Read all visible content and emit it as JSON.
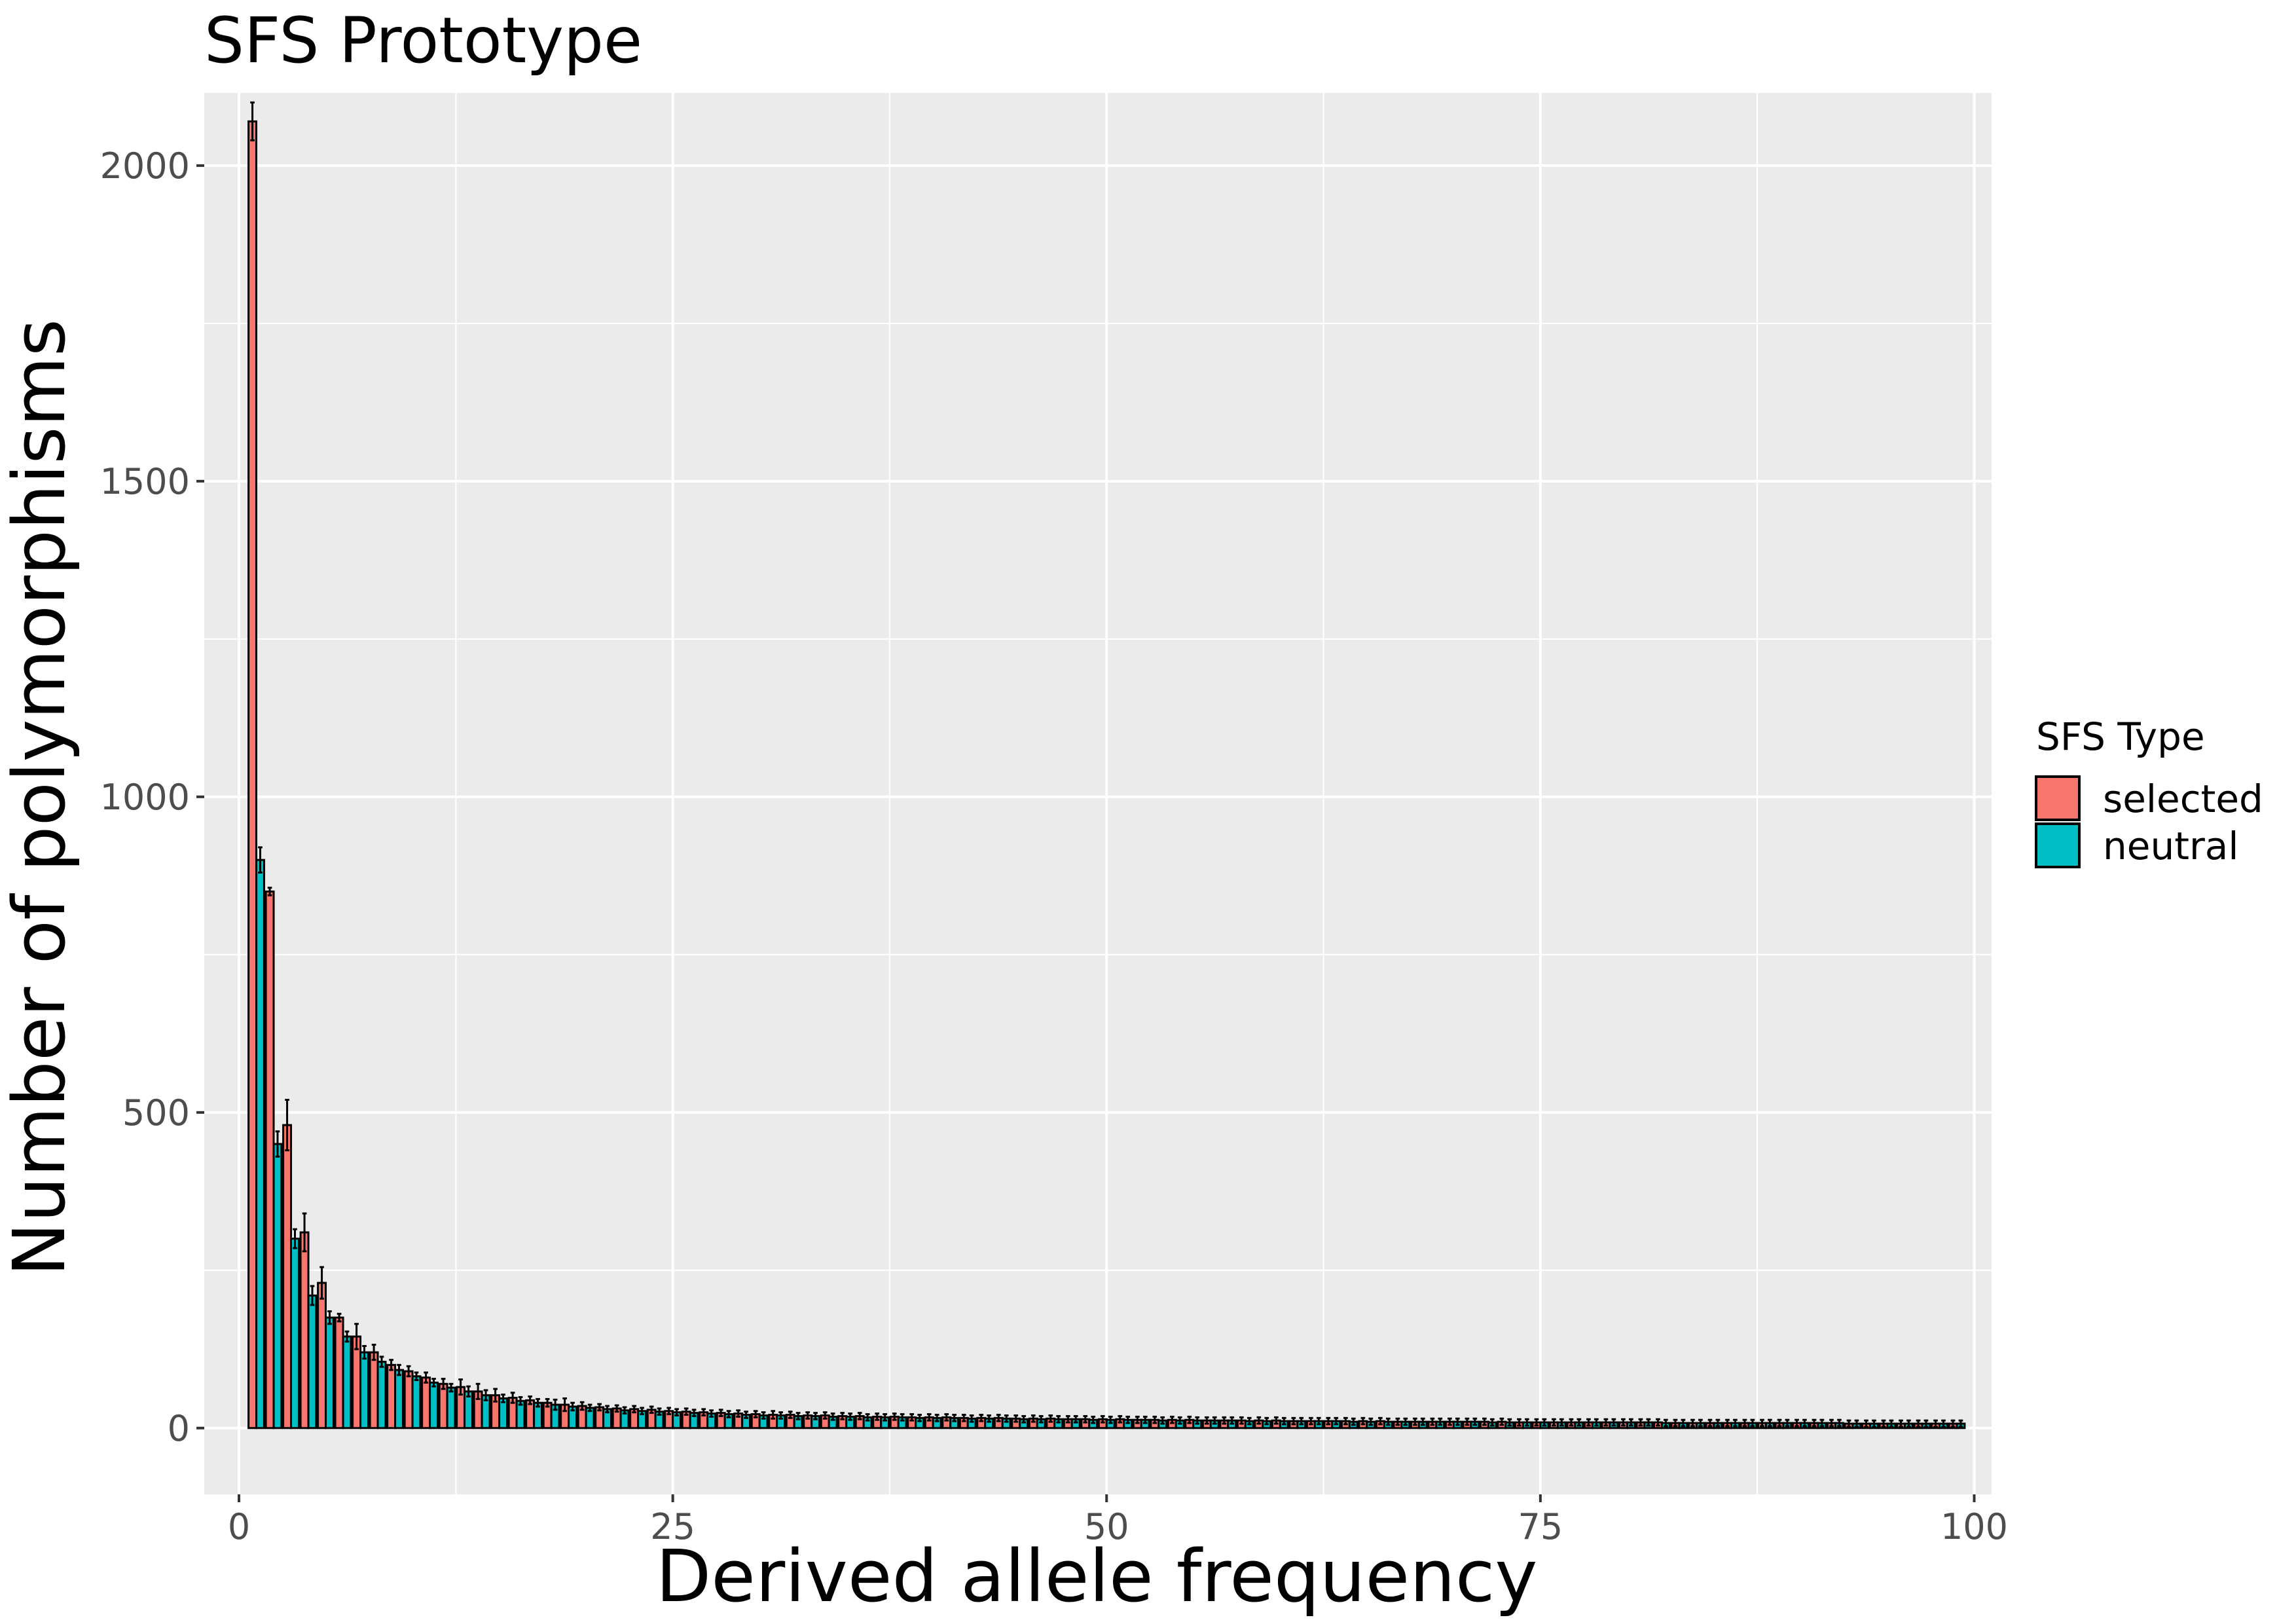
{
  "chart_data": {
    "type": "bar",
    "title": "SFS Prototype",
    "xlabel": "Derived allele frequency",
    "ylabel": "Number of polymorphisms",
    "xlim": [
      -2,
      101
    ],
    "ylim": [
      -105,
      2115
    ],
    "x_ticks": [
      0,
      25,
      50,
      75,
      100
    ],
    "x_tick_labels": [
      "0",
      "25",
      "50",
      "75",
      "100"
    ],
    "y_ticks": [
      0,
      500,
      1000,
      1500,
      2000
    ],
    "y_tick_labels": [
      "0",
      "500",
      "1000",
      "1500",
      "2000"
    ],
    "grid": true,
    "legend": {
      "title": "SFS Type",
      "position": "right"
    },
    "x": [
      1,
      2,
      3,
      4,
      5,
      6,
      7,
      8,
      9,
      10,
      11,
      12,
      13,
      14,
      15,
      16,
      17,
      18,
      19,
      20,
      21,
      22,
      23,
      24,
      25,
      26,
      27,
      28,
      29,
      30,
      31,
      32,
      33,
      34,
      35,
      36,
      37,
      38,
      39,
      40,
      41,
      42,
      43,
      44,
      45,
      46,
      47,
      48,
      49,
      50,
      51,
      52,
      53,
      54,
      55,
      56,
      57,
      58,
      59,
      60,
      61,
      62,
      63,
      64,
      65,
      66,
      67,
      68,
      69,
      70,
      71,
      72,
      73,
      74,
      75,
      76,
      77,
      78,
      79,
      80,
      81,
      82,
      83,
      84,
      85,
      86,
      87,
      88,
      89,
      90,
      91,
      92,
      93,
      94,
      95,
      96,
      97,
      98,
      99
    ],
    "series": [
      {
        "name": "selected",
        "color": "#F8766D",
        "values": [
          2070,
          850,
          480,
          310,
          230,
          175,
          145,
          120,
          100,
          90,
          80,
          70,
          65,
          58,
          52,
          48,
          44,
          40,
          37,
          35,
          33,
          31,
          30,
          29,
          27,
          26,
          25,
          24,
          23,
          22,
          21,
          21,
          20,
          20,
          19,
          19,
          18,
          18,
          17,
          17,
          17,
          16,
          16,
          16,
          15,
          15,
          15,
          14,
          14,
          14,
          14,
          13,
          13,
          13,
          13,
          12,
          12,
          12,
          12,
          12,
          11,
          11,
          11,
          11,
          11,
          11,
          10,
          10,
          10,
          10,
          10,
          10,
          10,
          9,
          9,
          9,
          9,
          9,
          9,
          9,
          9,
          9,
          8,
          8,
          8,
          8,
          8,
          8,
          8,
          8,
          8,
          8,
          7,
          7,
          7,
          7,
          7,
          7,
          7
        ],
        "errors": [
          30,
          6,
          40,
          30,
          25,
          6,
          20,
          12,
          8,
          8,
          8,
          8,
          12,
          12,
          10,
          8,
          6,
          6,
          10,
          6,
          5,
          5,
          5,
          5,
          5,
          5,
          5,
          5,
          5,
          5,
          6,
          5,
          5,
          5,
          5,
          5,
          5,
          5,
          5,
          5,
          5,
          5,
          5,
          5,
          5,
          5,
          5,
          5,
          5,
          5,
          5,
          5,
          5,
          5,
          5,
          5,
          5,
          5,
          5,
          5,
          5,
          5,
          5,
          5,
          5,
          5,
          5,
          5,
          5,
          5,
          5,
          5,
          5,
          5,
          5,
          5,
          5,
          5,
          5,
          5,
          5,
          5,
          5,
          5,
          5,
          5,
          5,
          5,
          5,
          5,
          5,
          5,
          5,
          5,
          5,
          5,
          5,
          5,
          5
        ]
      },
      {
        "name": "neutral",
        "color": "#00BFC4",
        "values": [
          900,
          450,
          300,
          210,
          175,
          145,
          120,
          105,
          92,
          82,
          72,
          64,
          58,
          52,
          47,
          43,
          40,
          37,
          34,
          32,
          30,
          28,
          27,
          26,
          25,
          24,
          23,
          22,
          21,
          20,
          20,
          19,
          19,
          18,
          18,
          17,
          17,
          17,
          16,
          16,
          16,
          15,
          15,
          15,
          14,
          14,
          14,
          14,
          13,
          13,
          13,
          13,
          12,
          12,
          12,
          12,
          12,
          11,
          11,
          11,
          11,
          11,
          11,
          10,
          10,
          10,
          10,
          10,
          10,
          10,
          10,
          9,
          9,
          9,
          9,
          9,
          9,
          9,
          9,
          9,
          9,
          8,
          8,
          8,
          8,
          8,
          8,
          8,
          8,
          8,
          8,
          8,
          7,
          7,
          7,
          7,
          7,
          7,
          7
        ],
        "errors": [
          20,
          20,
          15,
          15,
          10,
          8,
          10,
          8,
          8,
          6,
          6,
          6,
          8,
          8,
          6,
          6,
          6,
          8,
          6,
          5,
          5,
          5,
          5,
          5,
          5,
          5,
          5,
          5,
          5,
          5,
          5,
          5,
          5,
          5,
          5,
          5,
          5,
          5,
          5,
          5,
          5,
          5,
          5,
          5,
          5,
          5,
          5,
          5,
          5,
          5,
          5,
          5,
          5,
          5,
          5,
          5,
          5,
          5,
          5,
          5,
          5,
          5,
          5,
          5,
          5,
          5,
          5,
          5,
          5,
          5,
          5,
          5,
          5,
          5,
          5,
          5,
          5,
          5,
          5,
          5,
          5,
          5,
          5,
          5,
          5,
          5,
          5,
          5,
          5,
          5,
          5,
          5,
          5,
          5,
          5,
          5,
          5,
          5,
          5
        ]
      }
    ]
  }
}
